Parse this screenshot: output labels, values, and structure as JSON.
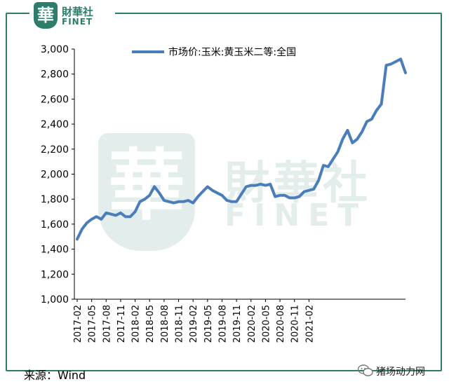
{
  "brand": {
    "logo_mark": "華",
    "logo_cn": "財華社",
    "logo_en": "FINET",
    "watermark_cn": "財華社",
    "watermark_en": "FINET"
  },
  "source_label": "来源：Wind",
  "brand_account": "猪场动力网",
  "colors": {
    "line": "#4a7eba",
    "frame": "#2e7d6b",
    "axis": "#000000"
  },
  "chart_data": {
    "type": "line",
    "title": "",
    "xlabel": "",
    "ylabel": "",
    "ylim": [
      1000,
      3000
    ],
    "yticks": [
      1000,
      1200,
      1400,
      1600,
      1800,
      2000,
      2200,
      2400,
      2600,
      2800,
      3000
    ],
    "ytick_labels": [
      "1,000",
      "1,200",
      "1,400",
      "1,600",
      "1,800",
      "2,000",
      "2,200",
      "2,400",
      "2,600",
      "2,800",
      "3,000"
    ],
    "xtick_labels": [
      "2017-02",
      "2017-05",
      "2017-08",
      "2017-11",
      "2018-02",
      "2018-05",
      "2018-08",
      "2018-11",
      "2019-02",
      "2019-05",
      "2019-08",
      "2019-11",
      "2020-02",
      "2020-05",
      "2020-08",
      "2020-11",
      "2021-02"
    ],
    "legend_position": "top",
    "grid": false,
    "series": [
      {
        "name": "市场价:玉米:黄玉米二等:全国",
        "x_start": "2017-02",
        "values": [
          1480,
          1560,
          1610,
          1640,
          1660,
          1640,
          1690,
          1680,
          1670,
          1690,
          1660,
          1660,
          1700,
          1780,
          1800,
          1830,
          1900,
          1850,
          1790,
          1780,
          1770,
          1780,
          1780,
          1790,
          1770,
          1820,
          1860,
          1900,
          1870,
          1850,
          1830,
          1790,
          1780,
          1780,
          1840,
          1900,
          1910,
          1910,
          1920,
          1910,
          1920,
          1820,
          1830,
          1830,
          1810,
          1810,
          1820,
          1860,
          1870,
          1880,
          1950,
          2070,
          2060,
          2120,
          2180,
          2280,
          2350,
          2250,
          2280,
          2340,
          2420,
          2440,
          2510,
          2560,
          2870,
          2880,
          2900,
          2920,
          2810
        ]
      }
    ]
  }
}
